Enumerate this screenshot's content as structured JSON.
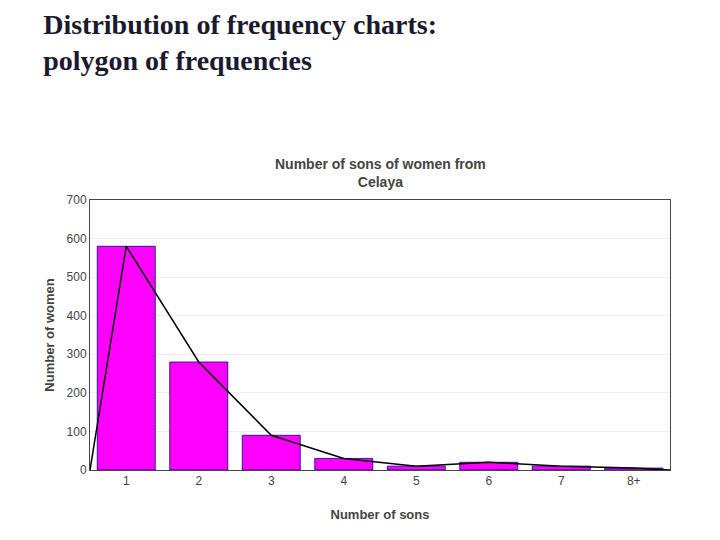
{
  "title": [
    "Distribution of frequency charts:",
    "polygon of frequencies"
  ],
  "chart_data": {
    "type": "bar",
    "title": "Number of sons of women from\nCelaya",
    "xlabel": "Number of sons",
    "ylabel": "Number of women",
    "categories": [
      "1",
      "2",
      "3",
      "4",
      "5",
      "6",
      "7",
      "8+"
    ],
    "series": [
      {
        "type": "bar",
        "color": "#FF00FF",
        "values": [
          580,
          280,
          90,
          30,
          10,
          20,
          10,
          5
        ]
      },
      {
        "type": "line",
        "color": "#000000",
        "values": [
          580,
          280,
          90,
          30,
          10,
          20,
          10,
          5
        ]
      }
    ],
    "ylim": [
      0,
      700
    ],
    "yticks": [
      0,
      100,
      200,
      300,
      400,
      500,
      600,
      700
    ],
    "grid": true
  }
}
